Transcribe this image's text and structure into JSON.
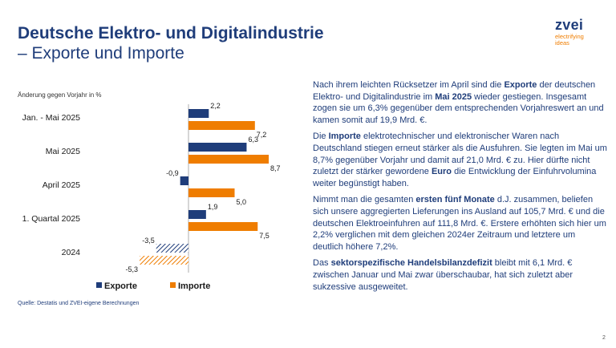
{
  "title": {
    "line1": "Deutsche Elektro- und Digitalindustrie",
    "line2": "– Exporte und Importe"
  },
  "logo": {
    "word": "zvei",
    "tagline1": "electrifying",
    "tagline2": "ideas"
  },
  "chart_caption": "Änderung gegen Vorjahr in %",
  "source": "Quelle: Destatis und ZVEI-eigene Berechnungen",
  "colors": {
    "exporte": "#1f3d7a",
    "importe": "#ef7d00",
    "title": "#1f3d7a"
  },
  "chart_data": {
    "type": "bar",
    "orientation": "horizontal",
    "categories": [
      "Jan. - Mai 2025",
      "Mai 2025",
      "April 2025",
      "1. Quartal 2025",
      "2024"
    ],
    "series": [
      {
        "name": "Exporte",
        "values": [
          2.2,
          6.3,
          -0.9,
          1.9,
          -3.5
        ],
        "labels": [
          "2,2",
          "6,3",
          "-0,9",
          "1,9",
          "-3,5"
        ]
      },
      {
        "name": "Importe",
        "values": [
          7.2,
          8.7,
          5.0,
          7.5,
          -5.3
        ],
        "labels": [
          "7,2",
          "8,7",
          "5,0",
          "7,5",
          "-5,3"
        ]
      }
    ],
    "hatched_category": "2024",
    "legend_position": "bottom",
    "grid": false
  },
  "paragraphs": [
    [
      {
        "t": "Nach ihrem leichten Rücksetzer im April sind die "
      },
      {
        "t": "Exporte",
        "b": true
      },
      {
        "t": " der deutschen Elektro- und Digitalindustrie im "
      },
      {
        "t": "Mai 2025",
        "b": true
      },
      {
        "t": " wieder gestiegen. Insgesamt zogen sie um 6,3% gegenüber dem entsprechenden Vorjahreswert an und kamen somit auf 19,9 Mrd. €."
      }
    ],
    [
      {
        "t": "Die "
      },
      {
        "t": "Importe",
        "b": true
      },
      {
        "t": " elektrotechnischer und elektronischer Waren nach Deutschland stiegen erneut stärker als die Ausfuhren. Sie legten im Mai um 8,7% gegenüber Vorjahr und damit auf 21,0 Mrd. € zu. Hier dürfte nicht zuletzt der stärker gewordene "
      },
      {
        "t": "Euro",
        "b": true
      },
      {
        "t": " die Entwicklung der Einfuhrvolumina weiter begünstigt haben."
      }
    ],
    [
      {
        "t": "Nimmt man die gesamten "
      },
      {
        "t": "ersten fünf Monate",
        "b": true
      },
      {
        "t": " d.J. zusammen, beliefen sich unsere aggregierten Lieferungen ins Ausland auf 105,7 Mrd. € und die deutschen Elektroeinfuhren auf 111,8 Mrd. €. Erstere erhöhten sich hier um 2,2% verglichen mit dem gleichen 2024er Zeitraum und letztere um deutlich höhere 7,2%."
      }
    ],
    [
      {
        "t": "Das "
      },
      {
        "t": "sektorspezifische Handelsbilanzdefizit",
        "b": true
      },
      {
        "t": " bleibt mit 6,1 Mrd. € zwischen Januar und Mai zwar überschaubar, hat sich zuletzt aber sukzessive ausgeweitet."
      }
    ]
  ],
  "page_number": "2"
}
